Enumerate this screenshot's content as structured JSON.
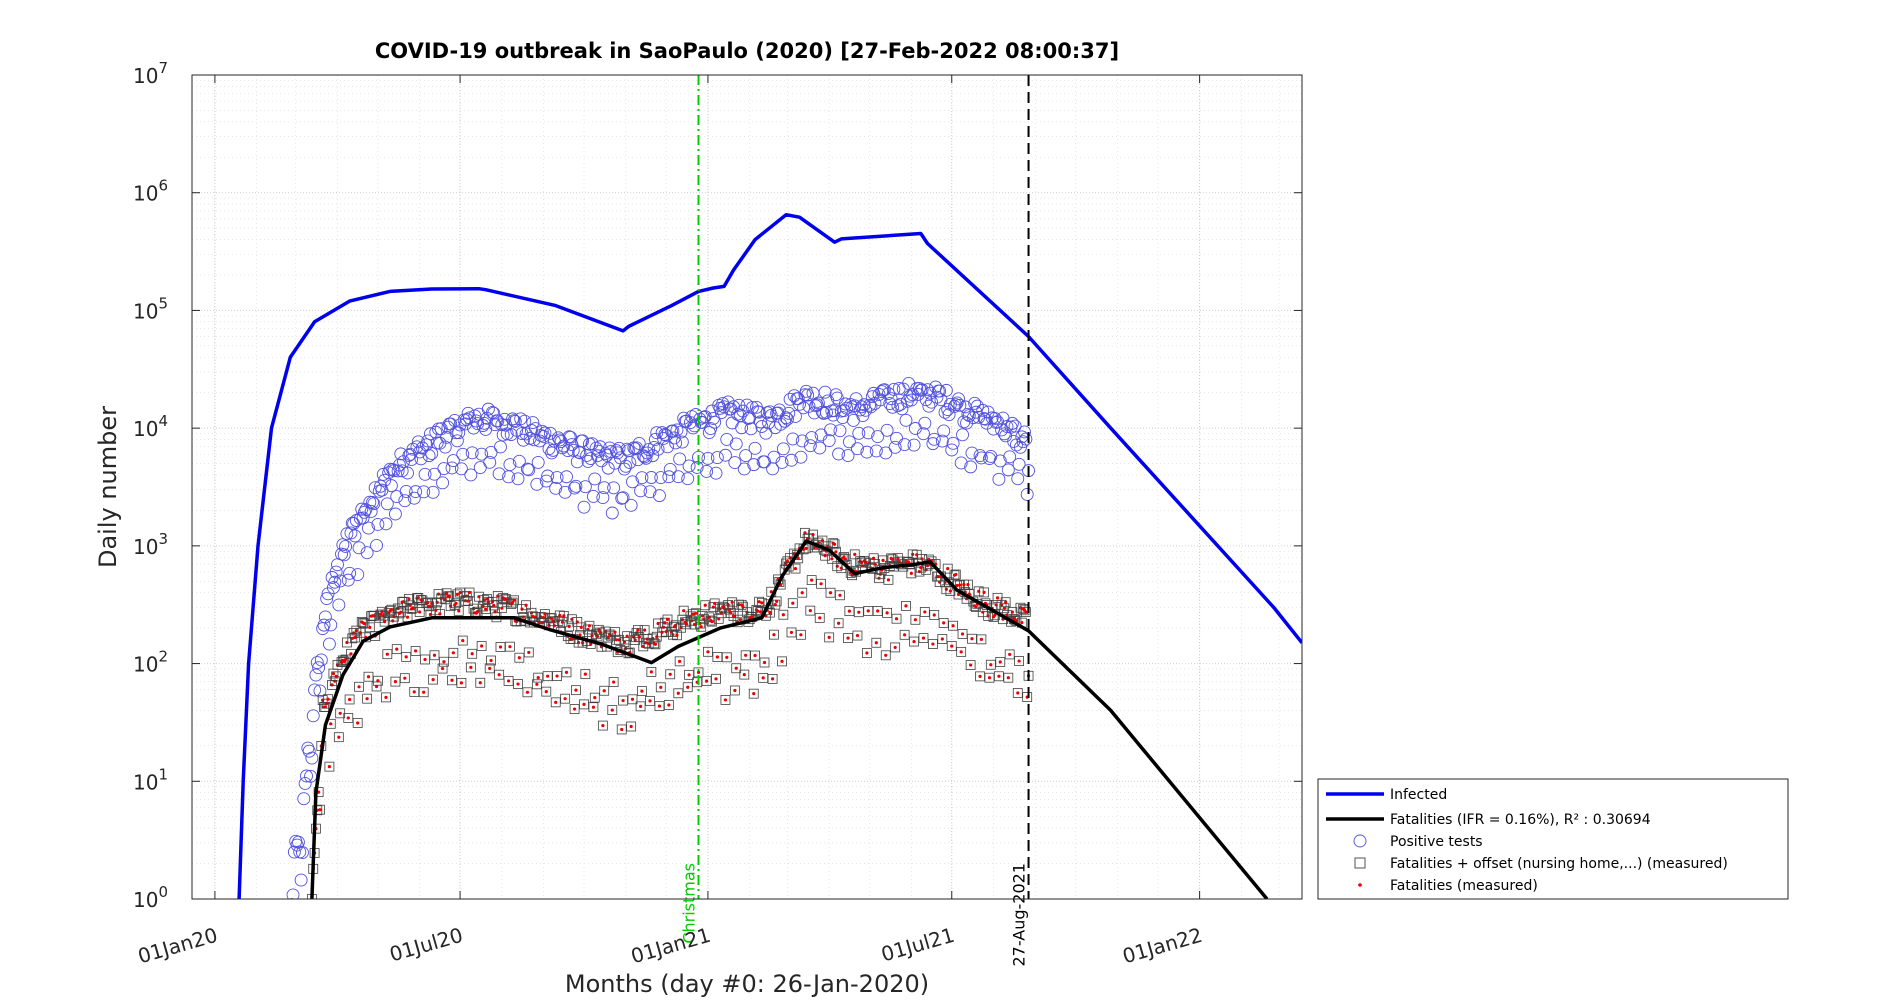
{
  "chart_data": {
    "type": "line",
    "title": "COVID-19 outbreak in SaoPaulo (2020) [27-Feb-2022 08:00:37]",
    "xlabel": "Months (day #0: 26-Jan-2020)",
    "ylabel": "Daily number",
    "y_scale": "log",
    "ylim": [
      1,
      10000000
    ],
    "xlim": [
      "2019-12-15",
      "2022-03-18"
    ],
    "x_ticks": [
      {
        "date": "2020-01-01",
        "label": "01Jan20"
      },
      {
        "date": "2020-07-01",
        "label": "01Jul20"
      },
      {
        "date": "2021-01-01",
        "label": "01Jan21"
      },
      {
        "date": "2021-07-01",
        "label": "01Jul21"
      },
      {
        "date": "2022-01-01",
        "label": "01Jan22"
      }
    ],
    "y_ticks": [
      {
        "value": 1,
        "base": "10",
        "exp": "0"
      },
      {
        "value": 10,
        "base": "10",
        "exp": "1"
      },
      {
        "value": 100,
        "base": "10",
        "exp": "2"
      },
      {
        "value": 1000,
        "base": "10",
        "exp": "3"
      },
      {
        "value": 10000,
        "base": "10",
        "exp": "4"
      },
      {
        "value": 100000,
        "base": "10",
        "exp": "5"
      },
      {
        "value": 1000000,
        "base": "10",
        "exp": "6"
      },
      {
        "value": 10000000,
        "base": "10",
        "exp": "7"
      }
    ],
    "grid": true,
    "minor_grid": true,
    "legend_position": "bottom-right",
    "vertical_lines": [
      {
        "date": "2020-12-25",
        "label": "Christmas",
        "color": "#00cc00",
        "style": "dash-dot"
      },
      {
        "date": "2021-08-27",
        "label": "27-Aug-2021",
        "color": "#000000",
        "style": "dashed"
      }
    ],
    "series": [
      {
        "name": "Infected",
        "kind": "line",
        "color": "#0000ee",
        "points": [
          [
            "2020-01-19",
            1
          ],
          [
            "2020-01-22",
            10
          ],
          [
            "2020-01-26",
            100
          ],
          [
            "2020-02-02",
            1000
          ],
          [
            "2020-02-12",
            10000
          ],
          [
            "2020-02-26",
            40000
          ],
          [
            "2020-03-15",
            80000
          ],
          [
            "2020-04-10",
            120000
          ],
          [
            "2020-05-10",
            145000
          ],
          [
            "2020-06-10",
            152000
          ],
          [
            "2020-07-15",
            153000
          ],
          [
            "2020-07-20",
            150000
          ],
          [
            "2020-09-10",
            110000
          ],
          [
            "2020-10-30",
            67000
          ],
          [
            "2020-11-03",
            73000
          ],
          [
            "2020-12-05",
            110000
          ],
          [
            "2020-12-25",
            145000
          ],
          [
            "2021-01-05",
            155000
          ],
          [
            "2021-01-13",
            160000
          ],
          [
            "2021-01-20",
            220000
          ],
          [
            "2021-02-05",
            400000
          ],
          [
            "2021-02-28",
            650000
          ],
          [
            "2021-03-10",
            620000
          ],
          [
            "2021-04-05",
            380000
          ],
          [
            "2021-04-10",
            405000
          ],
          [
            "2021-06-08",
            450000
          ],
          [
            "2021-06-13",
            370000
          ],
          [
            "2021-08-27",
            60000
          ],
          [
            "2021-10-27",
            10000
          ],
          [
            "2022-02-25",
            300
          ],
          [
            "2022-03-18",
            150
          ]
        ]
      },
      {
        "name": "Fatalities (IFR = 0.16%), R² : 0.30694",
        "kind": "line",
        "color": "#000000",
        "points": [
          [
            "2020-03-13",
            1
          ],
          [
            "2020-03-16",
            8
          ],
          [
            "2020-03-23",
            30
          ],
          [
            "2020-04-05",
            80
          ],
          [
            "2020-04-20",
            155
          ],
          [
            "2020-05-10",
            205
          ],
          [
            "2020-06-10",
            245
          ],
          [
            "2020-07-15",
            245
          ],
          [
            "2020-08-10",
            245
          ],
          [
            "2020-09-05",
            195
          ],
          [
            "2020-10-15",
            145
          ],
          [
            "2020-11-20",
            102
          ],
          [
            "2020-12-10",
            140
          ],
          [
            "2021-01-10",
            200
          ],
          [
            "2021-02-10",
            245
          ],
          [
            "2021-02-25",
            550
          ],
          [
            "2021-03-15",
            1100
          ],
          [
            "2021-04-01",
            920
          ],
          [
            "2021-04-20",
            580
          ],
          [
            "2021-05-10",
            650
          ],
          [
            "2021-06-05",
            700
          ],
          [
            "2021-06-15",
            730
          ],
          [
            "2021-07-05",
            420
          ],
          [
            "2021-08-27",
            190
          ],
          [
            "2021-10-27",
            40
          ],
          [
            "2022-02-20",
            1
          ]
        ]
      },
      {
        "name": "Positive tests",
        "kind": "scatter",
        "marker": "circle",
        "color": "#5050dd",
        "start": "2020-02-27",
        "end": "2021-08-27",
        "points": [
          [
            "2020-02-27",
            2
          ],
          [
            "2020-03-05",
            3
          ],
          [
            "2020-03-10",
            16
          ],
          [
            "2020-03-15",
            50
          ],
          [
            "2020-03-20",
            180
          ],
          [
            "2020-04-01",
            700
          ],
          [
            "2020-04-15",
            1500
          ],
          [
            "2020-05-01",
            3000
          ],
          [
            "2020-05-15",
            4500
          ],
          [
            "2020-06-01",
            6000
          ],
          [
            "2020-06-15",
            8000
          ],
          [
            "2020-07-01",
            10000
          ],
          [
            "2020-07-15",
            11500
          ],
          [
            "2020-08-01",
            11000
          ],
          [
            "2020-08-15",
            9500
          ],
          [
            "2020-09-01",
            8000
          ],
          [
            "2020-09-15",
            7000
          ],
          [
            "2020-10-01",
            6000
          ],
          [
            "2020-10-15",
            5500
          ],
          [
            "2020-11-01",
            5200
          ],
          [
            "2020-11-15",
            6500
          ],
          [
            "2020-12-01",
            8000
          ],
          [
            "2020-12-15",
            9500
          ],
          [
            "2021-01-01",
            11000
          ],
          [
            "2021-01-15",
            13000
          ],
          [
            "2021-02-01",
            12000
          ],
          [
            "2021-02-15",
            11000
          ],
          [
            "2021-03-01",
            14000
          ],
          [
            "2021-03-15",
            17000
          ],
          [
            "2021-04-01",
            16000
          ],
          [
            "2021-04-15",
            14000
          ],
          [
            "2021-05-01",
            15000
          ],
          [
            "2021-05-15",
            17000
          ],
          [
            "2021-06-01",
            19000
          ],
          [
            "2021-06-15",
            18000
          ],
          [
            "2021-07-01",
            16000
          ],
          [
            "2021-07-15",
            13000
          ],
          [
            "2021-08-01",
            11000
          ],
          [
            "2021-08-15",
            9000
          ],
          [
            "2021-08-27",
            7000
          ]
        ]
      },
      {
        "name": "Fatalities + offset (nursing home,...) (measured)",
        "kind": "scatter",
        "marker": "square",
        "color": "#404040",
        "start": "2020-03-13",
        "end": "2021-08-27",
        "points": [
          [
            "2020-03-13",
            1
          ],
          [
            "2020-03-17",
            5
          ],
          [
            "2020-03-20",
            40
          ],
          [
            "2020-04-01",
            90
          ],
          [
            "2020-04-15",
            170
          ],
          [
            "2020-05-01",
            220
          ],
          [
            "2020-05-15",
            270
          ],
          [
            "2020-06-01",
            300
          ],
          [
            "2020-06-15",
            320
          ],
          [
            "2020-07-01",
            330
          ],
          [
            "2020-07-15",
            320
          ],
          [
            "2020-08-01",
            300
          ],
          [
            "2020-08-15",
            280
          ],
          [
            "2020-09-01",
            240
          ],
          [
            "2020-09-15",
            210
          ],
          [
            "2020-10-01",
            180
          ],
          [
            "2020-10-15",
            160
          ],
          [
            "2020-11-01",
            150
          ],
          [
            "2020-11-15",
            170
          ],
          [
            "2020-12-01",
            190
          ],
          [
            "2020-12-15",
            230
          ],
          [
            "2021-01-01",
            260
          ],
          [
            "2021-01-15",
            270
          ],
          [
            "2021-02-01",
            280
          ],
          [
            "2021-02-15",
            310
          ],
          [
            "2021-03-01",
            600
          ],
          [
            "2021-03-15",
            1100
          ],
          [
            "2021-04-01",
            900
          ],
          [
            "2021-04-15",
            700
          ],
          [
            "2021-05-01",
            650
          ],
          [
            "2021-05-15",
            640
          ],
          [
            "2021-06-01",
            700
          ],
          [
            "2021-06-15",
            650
          ],
          [
            "2021-07-01",
            500
          ],
          [
            "2021-07-15",
            380
          ],
          [
            "2021-08-01",
            300
          ],
          [
            "2021-08-15",
            270
          ],
          [
            "2021-08-27",
            220
          ]
        ]
      },
      {
        "name": "Fatalities (measured)",
        "kind": "scatter",
        "marker": "dot",
        "color": "#ee0000",
        "start": "2020-03-13",
        "end": "2021-08-27"
      }
    ]
  }
}
